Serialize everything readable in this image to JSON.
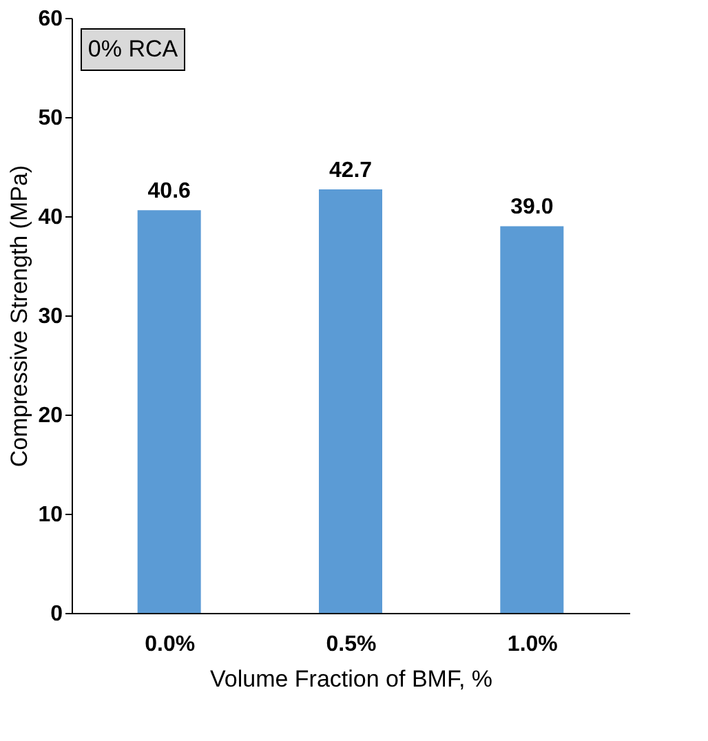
{
  "chart_data": {
    "type": "bar",
    "categories": [
      "0.0%",
      "0.5%",
      "1.0%"
    ],
    "values": [
      40.6,
      42.7,
      39.0
    ],
    "value_labels": [
      "40.6",
      "42.7",
      "39.0"
    ],
    "color": "#5b9bd5",
    "xlabel": "Volume Fraction of BMF, %",
    "ylabel": "Compressive Strength (MPa)",
    "ylim": [
      0,
      60
    ],
    "yticks": [
      0,
      10,
      20,
      30,
      40,
      50,
      60
    ],
    "grid": false,
    "annotations": [
      "0% RCA"
    ]
  }
}
